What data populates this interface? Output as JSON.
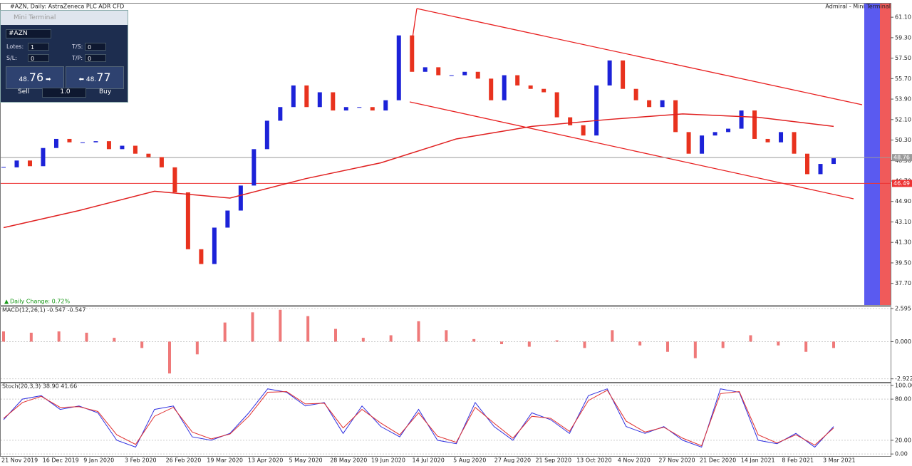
{
  "window": {
    "title": "#AZN, Daily:  AstraZeneca PLC ADR CFD",
    "broker": "Admiral - Mini Terminal"
  },
  "mini_terminal": {
    "title": "Mini Terminal",
    "symbol": "#AZN",
    "fields": [
      {
        "label": "Lotes:",
        "value": "1"
      },
      {
        "label": "T/S:",
        "value": "0"
      },
      {
        "label": "S/L:",
        "value": "0"
      },
      {
        "label": "T/P:",
        "value": "0"
      }
    ],
    "sell": {
      "prefix": "48.",
      "digits": "76",
      "label": "Sell"
    },
    "buy": {
      "prefix": "48.",
      "digits": "77",
      "label": "Buy"
    },
    "volume": "1.0"
  },
  "chart_data": [
    {
      "type": "candlestick",
      "annotation": "Daily Change: 0.72%",
      "closes": [
        47.9,
        48.5,
        48.0,
        49.6,
        50.4,
        50.1,
        50.1,
        50.2,
        49.5,
        49.8,
        49.1,
        48.8,
        47.9,
        45.7,
        40.7,
        39.4,
        42.6,
        44.1,
        46.3,
        49.5,
        52.0,
        53.2,
        55.1,
        53.2,
        54.5,
        52.9,
        53.2,
        53.2,
        52.9,
        53.8,
        59.5,
        56.3,
        56.7,
        56.0,
        56.0,
        56.3,
        55.7,
        53.8,
        56.0,
        55.1,
        54.8,
        54.5,
        52.3,
        51.6,
        50.7,
        55.1,
        57.3,
        54.8,
        53.8,
        53.2,
        53.8,
        51.0,
        49.1,
        50.7,
        51.0,
        51.3,
        52.9,
        50.4,
        50.1,
        51.0,
        49.1,
        47.3,
        48.2,
        48.7
      ],
      "up_color": "#1c22d8",
      "down_color": "#e8321e",
      "ma200": [
        42.6,
        44.1,
        45.8,
        45.2,
        46.9,
        48.3,
        50.4,
        51.5,
        52.1,
        52.6,
        52.3,
        51.5
      ],
      "ma_color": "#e02020",
      "price_lines": [
        48.76,
        46.49
      ],
      "price_line_colors": [
        "#9a9a9a",
        "#ee3333"
      ],
      "ylim": [
        35.8,
        62.3
      ],
      "yticks": [
        {
          "value": 61.1,
          "label": "61.10"
        },
        {
          "value": 59.3,
          "label": "59.30"
        },
        {
          "value": 57.5,
          "label": "57.50"
        },
        {
          "value": 55.7,
          "label": "55.70"
        },
        {
          "value": 53.9,
          "label": "53.90"
        },
        {
          "value": 52.1,
          "label": "52.10"
        },
        {
          "value": 50.3,
          "label": "50.30"
        },
        {
          "value": 48.5,
          "label": "48.50"
        },
        {
          "value": 46.7,
          "label": "46.70"
        },
        {
          "value": 44.9,
          "label": "44.90"
        },
        {
          "value": 43.1,
          "label": "43.10"
        },
        {
          "value": 41.3,
          "label": "41.30"
        },
        {
          "value": 39.5,
          "label": "39.50"
        },
        {
          "value": 37.7,
          "label": "37.70"
        }
      ],
      "date_labels": [
        "21 Nov 2019",
        "16 Dec 2019",
        "9 Jan 2020",
        "3 Feb 2020",
        "26 Feb 2020",
        "19 Mar 2020",
        "13 Apr 2020",
        "5 May 2020",
        "28 May 2020",
        "19 Jun 2020",
        "14 Jul 2020",
        "5 Aug 2020",
        "27 Aug 2020",
        "21 Sep 2020",
        "13 Oct 2020",
        "4 Nov 2020",
        "27 Nov 2020",
        "21 Dec 2020",
        "14 Jan 2021",
        "8 Feb 2021",
        "3 Mar 2021"
      ]
    },
    {
      "type": "bar",
      "title": "MACD(12,26,1) -0.547 -0.547",
      "color": "#e84040",
      "values": [
        0.8,
        0.7,
        0.8,
        0.7,
        0.3,
        -0.5,
        -2.5,
        -1.0,
        1.5,
        2.3,
        2.5,
        2.0,
        1.0,
        0.3,
        0.5,
        1.6,
        0.9,
        0.2,
        -0.2,
        -0.4,
        0.1,
        -0.5,
        0.9,
        -0.3,
        -0.8,
        -1.3,
        -0.5,
        0.5,
        -0.3,
        -0.8,
        -0.5
      ],
      "ylim": [
        -3.22,
        2.71
      ],
      "yticks": [
        2.595,
        {
          "value": 0,
          "label": "0.000"
        },
        -2.922
      ]
    },
    {
      "type": "line",
      "title": "Stoch(20,3,3) 38.90 41.66",
      "series": [
        {
          "color": "#3030e0",
          "values": [
            50,
            80,
            85,
            65,
            70,
            60,
            20,
            10,
            65,
            70,
            25,
            20,
            30,
            60,
            95,
            90,
            70,
            75,
            30,
            70,
            40,
            25,
            65,
            20,
            15,
            75,
            40,
            20,
            60,
            50,
            30,
            85,
            95,
            40,
            30,
            40,
            20,
            10,
            95,
            90,
            20,
            15,
            30,
            10,
            40
          ]
        },
        {
          "color": "#e03030",
          "values": [
            52,
            75,
            84,
            68,
            69,
            62,
            28,
            14,
            55,
            68,
            32,
            22,
            29,
            55,
            90,
            91,
            73,
            74,
            38,
            65,
            45,
            28,
            60,
            26,
            17,
            68,
            45,
            23,
            55,
            52,
            33,
            78,
            93,
            48,
            32,
            39,
            23,
            12,
            88,
            91,
            28,
            16,
            28,
            13,
            38
          ]
        }
      ],
      "ylim": [
        -4,
        103
      ],
      "yticks": [
        {
          "value": 100,
          "label": "100.00"
        },
        {
          "value": 80,
          "label": "80.00"
        },
        {
          "value": 20,
          "label": "20.00"
        },
        {
          "value": 0,
          "label": "0.00"
        }
      ]
    }
  ]
}
